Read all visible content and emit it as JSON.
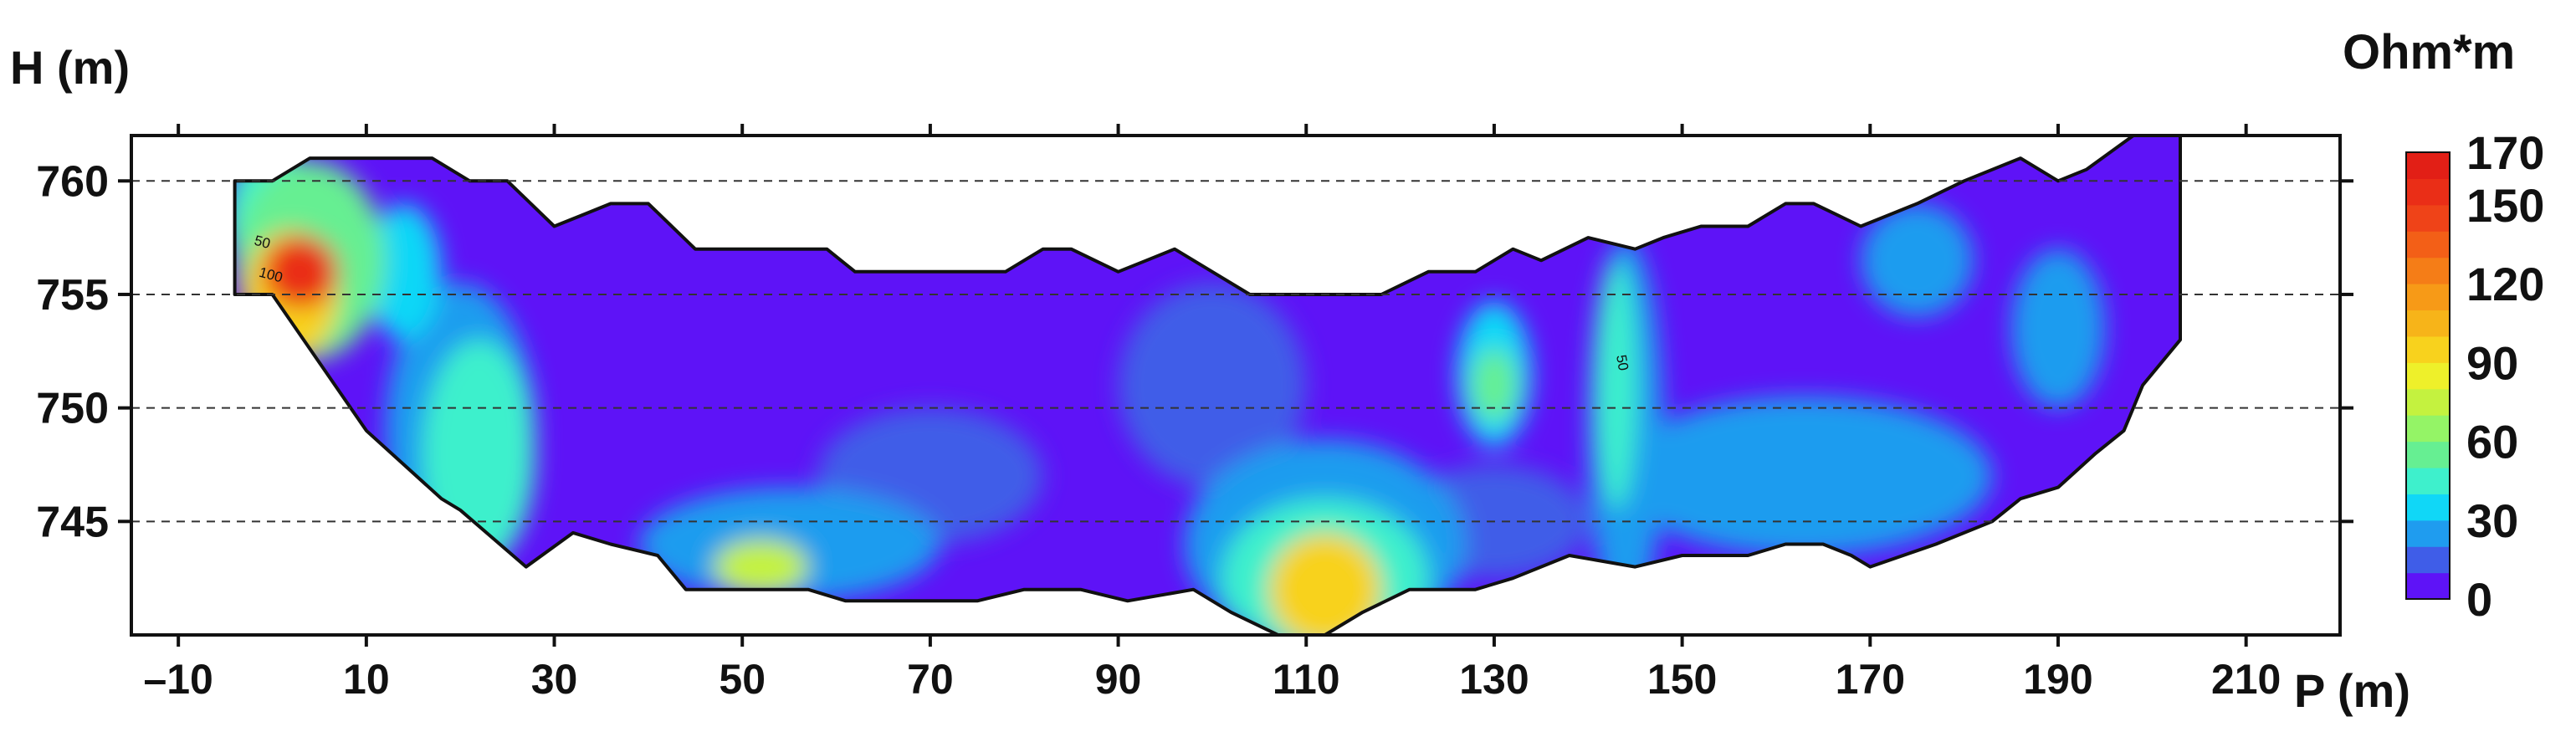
{
  "chart_data": {
    "type": "heatmap",
    "title": "",
    "xlabel": "P (m)",
    "ylabel": "H (m)",
    "xlim": [
      -15,
      220
    ],
    "ylim": [
      740,
      762
    ],
    "x_ticks": [
      -10,
      10,
      30,
      50,
      70,
      90,
      110,
      130,
      150,
      170,
      190,
      210
    ],
    "x_tick_labels": [
      "–10",
      "10",
      "30",
      "50",
      "70",
      "90",
      "110",
      "130",
      "150",
      "170",
      "190",
      "210"
    ],
    "y_ticks": [
      745,
      750,
      755,
      760
    ],
    "y_tick_labels": [
      "745",
      "750",
      "755",
      "760"
    ],
    "grid": "dashed horizontal lines at y ticks",
    "colorbar": {
      "title": "Ohm*m",
      "range": [
        0,
        170
      ],
      "tick_values": [
        0,
        30,
        60,
        90,
        120,
        150,
        170
      ],
      "tick_labels": [
        "0",
        "30",
        "60",
        "90",
        "120",
        "150",
        "170"
      ],
      "levels": [
        0,
        10,
        20,
        30,
        40,
        50,
        60,
        70,
        80,
        90,
        100,
        110,
        120,
        130,
        140,
        150,
        160,
        170
      ],
      "colors": [
        "#5e13f7",
        "#3f5de8",
        "#1f9cef",
        "#10d7f7",
        "#3ef0cc",
        "#66ef92",
        "#94f466",
        "#c4f23f",
        "#eef02a",
        "#f8d21d",
        "#f7b419",
        "#f79a17",
        "#f57d17",
        "#f35f17",
        "#ef4318",
        "#ea2e17",
        "#e21f16"
      ]
    },
    "contour_labels": [
      {
        "text": "50",
        "x": -2,
        "y": 757.2
      },
      {
        "text": "100",
        "x": -1.5,
        "y": 755.8
      },
      {
        "text": "50",
        "x": 143,
        "y": 752.3
      }
    ],
    "section_outline": [
      [
        -4,
        760
      ],
      [
        0,
        760
      ],
      [
        4,
        761
      ],
      [
        17,
        761
      ],
      [
        21,
        760
      ],
      [
        25,
        760
      ],
      [
        30,
        758
      ],
      [
        33,
        758.5
      ],
      [
        36,
        759
      ],
      [
        40,
        759
      ],
      [
        45,
        757
      ],
      [
        59,
        757
      ],
      [
        62,
        756
      ],
      [
        78,
        756
      ],
      [
        82,
        757
      ],
      [
        85,
        757
      ],
      [
        90,
        756
      ],
      [
        93,
        756.5
      ],
      [
        96,
        757
      ],
      [
        100,
        756
      ],
      [
        104,
        755
      ],
      [
        113,
        755
      ],
      [
        118,
        755
      ],
      [
        123,
        756
      ],
      [
        128,
        756
      ],
      [
        132,
        757
      ],
      [
        135,
        756.5
      ],
      [
        140,
        757.5
      ],
      [
        145,
        757
      ],
      [
        148,
        757.5
      ],
      [
        152,
        758
      ],
      [
        157,
        758
      ],
      [
        161,
        759
      ],
      [
        164,
        759
      ],
      [
        169,
        758
      ],
      [
        175,
        759
      ],
      [
        180,
        760
      ],
      [
        186,
        761
      ],
      [
        190,
        760
      ],
      [
        193,
        760.5
      ],
      [
        198,
        762
      ],
      [
        203,
        762
      ],
      [
        203,
        753
      ],
      [
        199,
        751
      ],
      [
        197,
        749
      ],
      [
        194,
        748
      ],
      [
        190,
        746.5
      ],
      [
        186,
        746
      ],
      [
        183,
        745
      ],
      [
        177,
        744
      ],
      [
        170,
        743
      ],
      [
        168,
        743.5
      ],
      [
        165,
        744
      ],
      [
        161,
        744
      ],
      [
        157,
        743.5
      ],
      [
        150,
        743.5
      ],
      [
        145,
        743
      ],
      [
        138,
        743.5
      ],
      [
        132,
        742.5
      ],
      [
        128,
        742
      ],
      [
        121,
        742
      ],
      [
        116,
        741
      ],
      [
        112,
        740
      ],
      [
        107,
        740
      ],
      [
        102,
        741
      ],
      [
        98,
        742
      ],
      [
        91,
        741.5
      ],
      [
        86,
        742
      ],
      [
        80,
        742
      ],
      [
        75,
        741.5
      ],
      [
        61,
        741.5
      ],
      [
        57,
        742
      ],
      [
        44,
        742
      ],
      [
        41,
        743.5
      ],
      [
        36,
        744
      ],
      [
        32,
        744.5
      ],
      [
        27,
        743
      ],
      [
        20,
        745.5
      ],
      [
        18,
        746
      ],
      [
        10,
        749
      ],
      [
        0,
        755
      ],
      [
        -4,
        755
      ]
    ],
    "cells": [
      {
        "x": 3,
        "y": 756,
        "rx": 4,
        "ry": 1.6,
        "value": 150
      },
      {
        "x": 2,
        "y": 755,
        "rx": 5,
        "ry": 2.8,
        "value": 95
      },
      {
        "x": 4,
        "y": 756.5,
        "rx": 8,
        "ry": 4.4,
        "value": 52
      },
      {
        "x": 0,
        "y": 758.5,
        "rx": 5,
        "ry": 3.0,
        "value": 45
      },
      {
        "x": 14,
        "y": 756,
        "rx": 4,
        "ry": 3.0,
        "value": 33
      },
      {
        "x": 22,
        "y": 748,
        "rx": 6,
        "ry": 5.0,
        "value": 42
      },
      {
        "x": 20,
        "y": 749,
        "rx": 8,
        "ry": 6.5,
        "value": 26
      },
      {
        "x": 52,
        "y": 743,
        "rx": 5,
        "ry": 1.2,
        "value": 72
      },
      {
        "x": 55,
        "y": 744,
        "rx": 16,
        "ry": 2.5,
        "value": 28
      },
      {
        "x": 112,
        "y": 742,
        "rx": 6,
        "ry": 2.5,
        "value": 95
      },
      {
        "x": 112,
        "y": 742.5,
        "rx": 11,
        "ry": 3.5,
        "value": 42
      },
      {
        "x": 112,
        "y": 744,
        "rx": 15,
        "ry": 4.6,
        "value": 24
      },
      {
        "x": 130,
        "y": 751,
        "rx": 2.4,
        "ry": 1.6,
        "value": 56
      },
      {
        "x": 130,
        "y": 751.5,
        "rx": 4,
        "ry": 3.2,
        "value": 30
      },
      {
        "x": 143,
        "y": 751,
        "rx": 2.2,
        "ry": 5.5,
        "value": 40
      },
      {
        "x": 144,
        "y": 749,
        "rx": 4,
        "ry": 8.5,
        "value": 24
      },
      {
        "x": 175,
        "y": 756.5,
        "rx": 6,
        "ry": 2.5,
        "value": 26
      },
      {
        "x": 190,
        "y": 753.5,
        "rx": 5,
        "ry": 3.5,
        "value": 20
      },
      {
        "x": 100,
        "y": 751,
        "rx": 10,
        "ry": 4.5,
        "value": 12
      },
      {
        "x": 70,
        "y": 747,
        "rx": 12,
        "ry": 3.0,
        "value": 12
      },
      {
        "x": 163,
        "y": 747,
        "rx": 20,
        "ry": 3.5,
        "value": 22
      },
      {
        "x": 130,
        "y": 745,
        "rx": 10,
        "ry": 2.5,
        "value": 18
      }
    ],
    "background_value": 5
  }
}
